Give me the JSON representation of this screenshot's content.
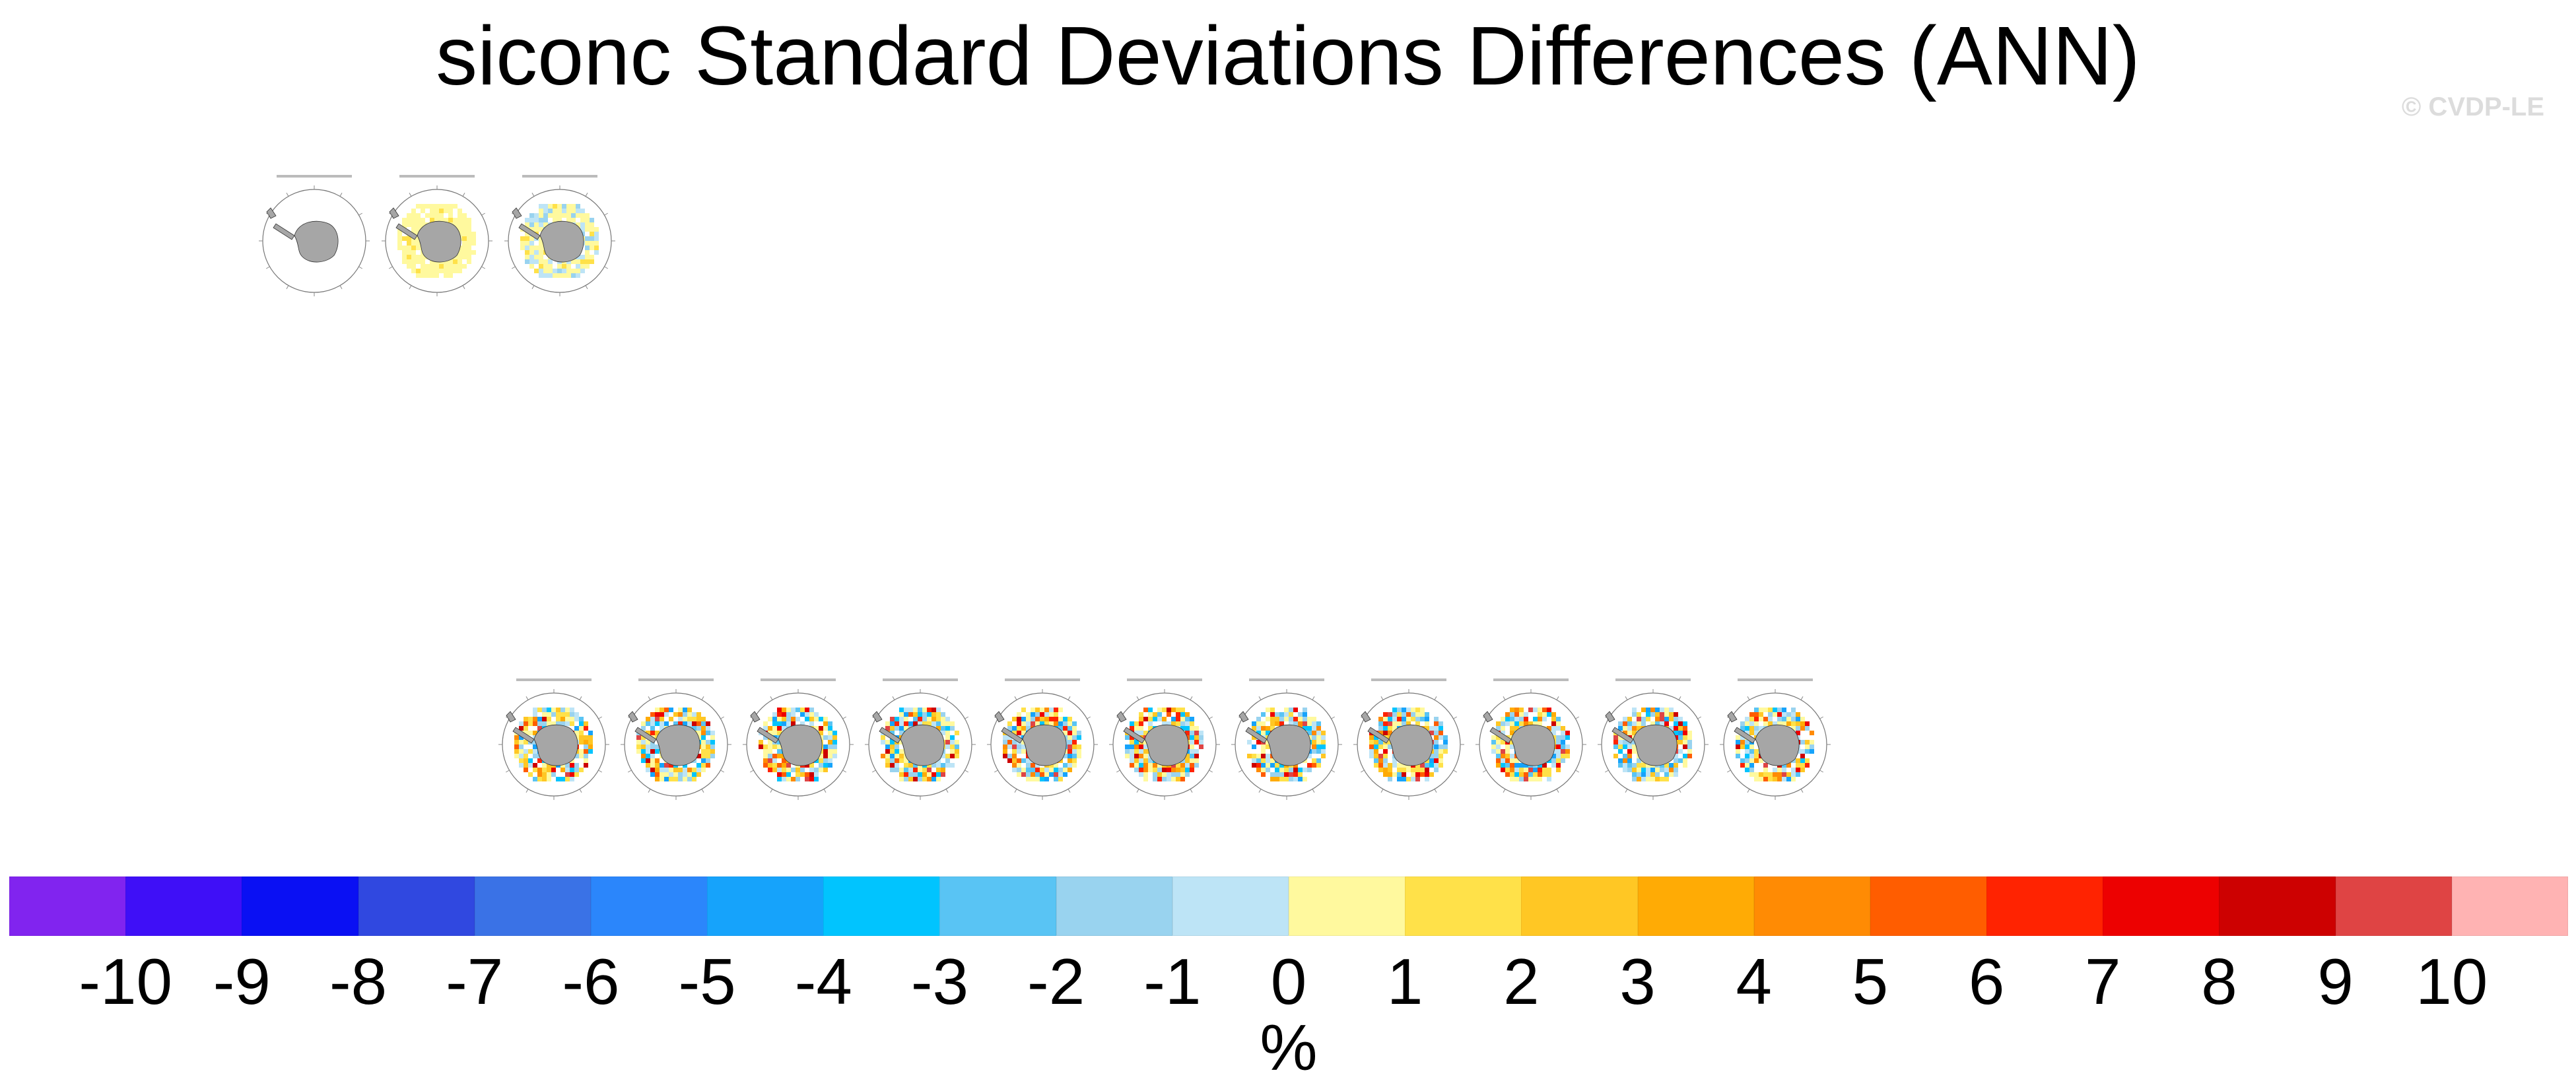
{
  "title": "siconc Standard Deviations Differences (ANN)",
  "watermark": "© CVDP-LE",
  "chart_data": {
    "type": "heatmap",
    "title": "siconc Standard Deviations Differences (ANN)",
    "projection": "south-polar-stereographic",
    "panels_top_row": [
      {
        "id": "obs-diff",
        "pattern": "none"
      },
      {
        "id": "obs-alt",
        "pattern": "yellow"
      },
      {
        "id": "obs-alt2",
        "pattern": "mixed-light"
      }
    ],
    "panels_bottom_row_count": 11,
    "colorbar": {
      "label": "%",
      "tick_labels": [
        "-10",
        "-9",
        "-8",
        "-7",
        "-6",
        "-5",
        "-4",
        "-3",
        "-2",
        "-1",
        "0",
        "1",
        "2",
        "3",
        "4",
        "5",
        "6",
        "7",
        "8",
        "9",
        "10"
      ],
      "colors": [
        "#8124ef",
        "#3f0ff7",
        "#0a10f3",
        "#3048e0",
        "#3a72e6",
        "#2b86fb",
        "#16a3fb",
        "#01c4fe",
        "#59c4f4",
        "#99d3ef",
        "#bde4f6",
        "#fff99e",
        "#ffe149",
        "#ffc724",
        "#ffab05",
        "#ff8b04",
        "#ff5d00",
        "#ff2301",
        "#ed0101",
        "#cd0101",
        "#df4444",
        "#ffb3b3"
      ]
    }
  }
}
